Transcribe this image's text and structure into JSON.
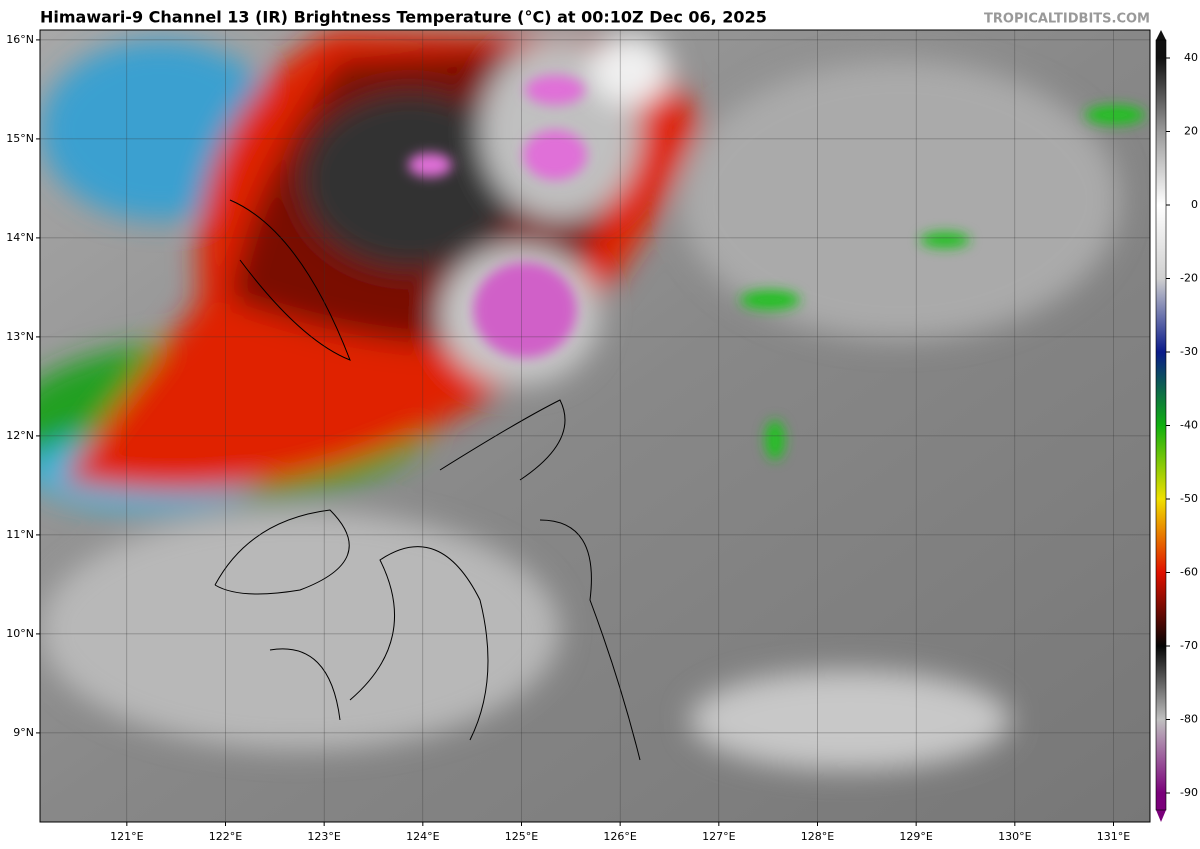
{
  "title": "Himawari-9 Channel 13 (IR) Brightness Temperature (°C) at 00:10Z Dec 06, 2025",
  "watermark": "TROPICALTIDBITS.COM",
  "map": {
    "xlim": [
      120.12,
      131.37
    ],
    "ylim": [
      8.1,
      16.1
    ],
    "xticks": [
      {
        "value": 121,
        "label": "121°E"
      },
      {
        "value": 122,
        "label": "122°E"
      },
      {
        "value": 123,
        "label": "123°E"
      },
      {
        "value": 124,
        "label": "124°E"
      },
      {
        "value": 125,
        "label": "125°E"
      },
      {
        "value": 126,
        "label": "126°E"
      },
      {
        "value": 127,
        "label": "127°E"
      },
      {
        "value": 128,
        "label": "128°E"
      },
      {
        "value": 129,
        "label": "129°E"
      },
      {
        "value": 130,
        "label": "130°E"
      },
      {
        "value": 131,
        "label": "131°E"
      }
    ],
    "yticks": [
      {
        "value": 9,
        "label": "9°N"
      },
      {
        "value": 10,
        "label": "10°N"
      },
      {
        "value": 11,
        "label": "11°N"
      },
      {
        "value": 12,
        "label": "12°N"
      },
      {
        "value": 13,
        "label": "13°N"
      },
      {
        "value": 14,
        "label": "14°N"
      },
      {
        "value": 15,
        "label": "15°N"
      },
      {
        "value": 16,
        "label": "16°N"
      }
    ],
    "grid": true
  },
  "colorbar": {
    "ticks": [
      40,
      20,
      0,
      -20,
      -30,
      -40,
      -50,
      -60,
      -70,
      -80,
      -90
    ],
    "colors": [
      "#111111",
      "#9a9a9a",
      "#ffffff",
      "#d0d0d0",
      "#0a1a8a",
      "#10b010",
      "#f0e000",
      "#e01000",
      "#050505",
      "#c0c0c0",
      "#7a007a"
    ]
  }
}
